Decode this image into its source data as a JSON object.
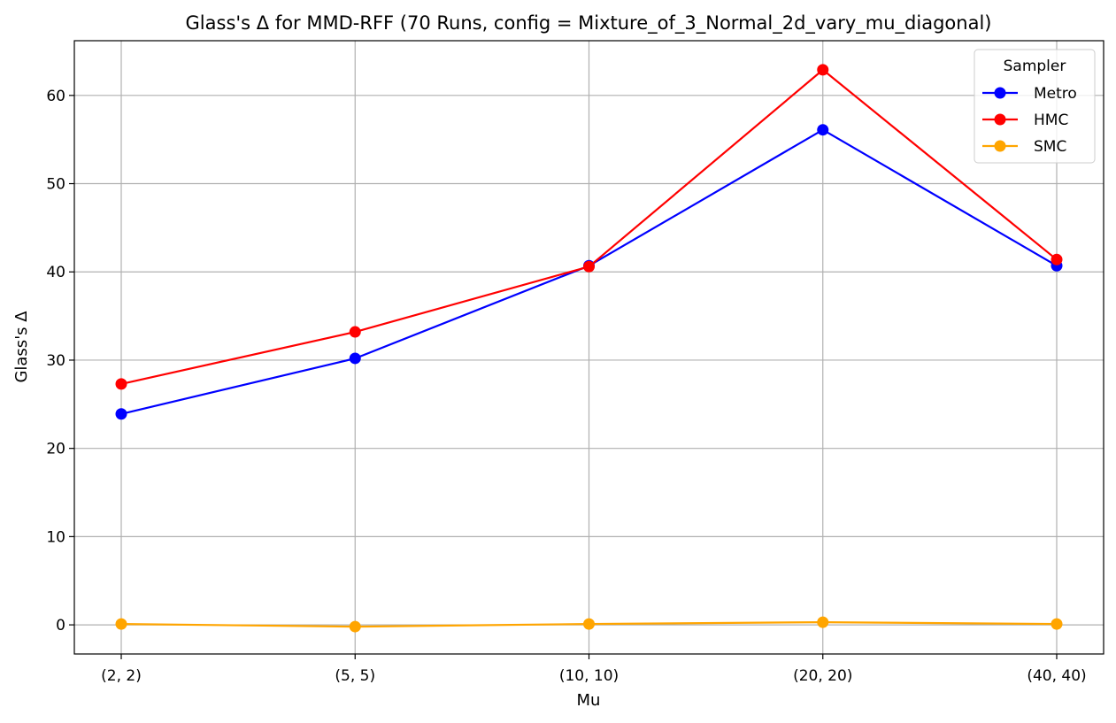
{
  "chart_data": {
    "type": "line",
    "title": "Glass's Δ for MMD-RFF (70 Runs, config = Mixture_of_3_Normal_2d_vary_mu_diagonal)",
    "xlabel": "Mu",
    "ylabel": "Glass's Δ",
    "categories": [
      "(2, 2)",
      "(5, 5)",
      "(10, 10)",
      "(20, 20)",
      "(40, 40)"
    ],
    "ylim": [
      -3.3,
      66.2
    ],
    "yticks": [
      0,
      10,
      20,
      30,
      40,
      50,
      60
    ],
    "grid": true,
    "legend": {
      "title": "Sampler",
      "placement": "top-right"
    },
    "series": [
      {
        "name": "Metro",
        "color": "#0000ff",
        "values": [
          23.9,
          30.2,
          40.7,
          56.1,
          40.7
        ]
      },
      {
        "name": "HMC",
        "color": "#ff0000",
        "values": [
          27.3,
          33.2,
          40.6,
          62.9,
          41.4
        ]
      },
      {
        "name": "SMC",
        "color": "#ffa500",
        "values": [
          0.1,
          -0.2,
          0.1,
          0.3,
          0.1
        ]
      }
    ]
  }
}
